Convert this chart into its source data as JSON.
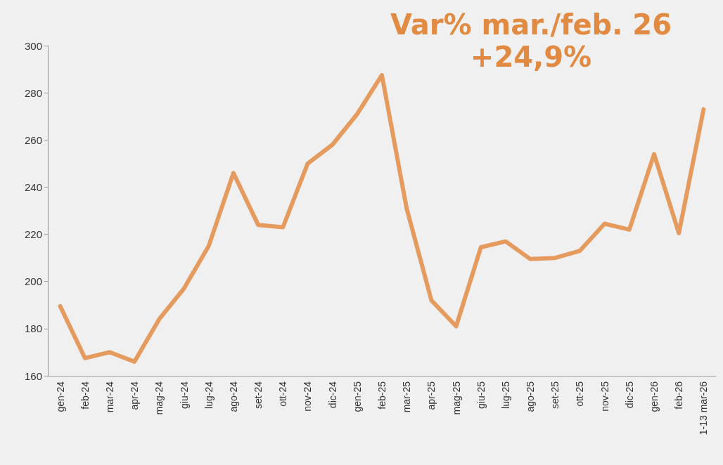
{
  "chart_data": {
    "type": "line",
    "title": "Var% mar./feb. 26",
    "subtitle": "+24,9%",
    "categories": [
      "gen-24",
      "feb-24",
      "mar-24",
      "apr-24",
      "mag-24",
      "giu-24",
      "lug-24",
      "ago-24",
      "set-24",
      "ott-24",
      "nov-24",
      "dic-24",
      "gen-25",
      "feb-25",
      "mar-25",
      "apr-25",
      "mag-25",
      "giu-25",
      "lug-25",
      "ago-25",
      "set-25",
      "ott-25",
      "nov-25",
      "dic-25",
      "gen-26",
      "feb-26",
      "1-13 mar-26"
    ],
    "series": [
      {
        "color": "#e59a5e",
        "values": [
          189.5,
          167.5,
          170,
          166,
          184,
          197,
          215,
          246,
          224,
          223,
          250,
          258,
          271,
          287.5,
          231,
          192,
          181,
          214.5,
          217,
          209.5,
          210,
          213,
          224.5,
          222,
          254,
          220.5,
          273
        ]
      }
    ],
    "ylim": [
      160,
      300
    ],
    "yticks": [
      160,
      180,
      200,
      220,
      240,
      260,
      280,
      300
    ],
    "marker": "none",
    "line_style": "solid"
  }
}
